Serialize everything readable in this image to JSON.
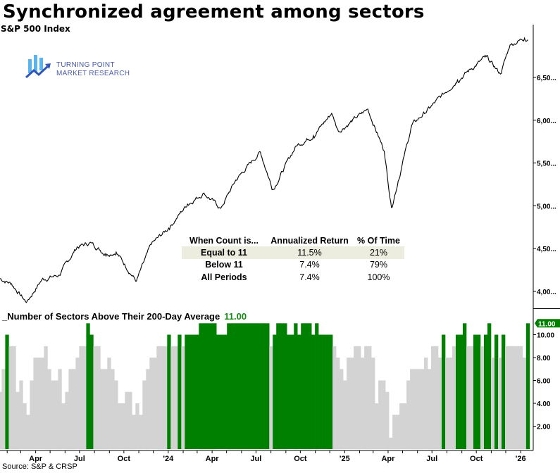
{
  "title": "Synchronized agreement among sectors",
  "logo": {
    "line1": "TURNING POINT",
    "line2": "MARKET RESEARCH"
  },
  "source": "Source: S&P & CRSP",
  "colors": {
    "price_line": "#000000",
    "count_at_or_above_10": "#008000",
    "count_below_10": "#d3d3d3",
    "logo_blue": "#2f7fe0",
    "logo_text": "#4a5aa8",
    "table_highlight": "#ecedde"
  },
  "stats_table": {
    "headers": [
      "When Count is...",
      "Annualized Return",
      "% Of Time"
    ],
    "rows": [
      {
        "label": "Equal to 11",
        "annualized_return": "11.5%",
        "pct_time": "21%"
      },
      {
        "label": "Below 11",
        "annualized_return": "7.4%",
        "pct_time": "79%"
      },
      {
        "label": "All Periods",
        "annualized_return": "7.4%",
        "pct_time": "100%"
      }
    ]
  },
  "chart_data": [
    {
      "type": "line",
      "title": "S&P 500 Index",
      "ylim": [
        3800,
        7050
      ],
      "y_ticks": [
        "4,00...",
        "4,50...",
        "5,00...",
        "5,50...",
        "6,00...",
        "6,50..."
      ],
      "y_tick_values": [
        4000,
        4500,
        5000,
        5500,
        6000,
        6500
      ],
      "grid": false,
      "points": [
        [
          "2023-01-17",
          4150
        ],
        [
          "2023-02-10",
          4090
        ],
        [
          "2023-03-13",
          3870
        ],
        [
          "2023-04-14",
          4140
        ],
        [
          "2023-05-20",
          4190
        ],
        [
          "2023-06-26",
          4520
        ],
        [
          "2023-07-25",
          4570
        ],
        [
          "2023-08-23",
          4440
        ],
        [
          "2023-09-15",
          4460
        ],
        [
          "2023-10-27",
          4120
        ],
        [
          "2023-11-27",
          4550
        ],
        [
          "2024-01-02",
          4740
        ],
        [
          "2024-02-10",
          5020
        ],
        [
          "2024-03-15",
          5150
        ],
        [
          "2024-04-19",
          4970
        ],
        [
          "2024-05-20",
          5300
        ],
        [
          "2024-07-10",
          5630
        ],
        [
          "2024-08-05",
          5190
        ],
        [
          "2024-09-22",
          5700
        ],
        [
          "2024-10-28",
          5820
        ],
        [
          "2024-12-05",
          6080
        ],
        [
          "2024-12-19",
          5870
        ],
        [
          "2025-02-18",
          6130
        ],
        [
          "2025-03-24",
          5640
        ],
        [
          "2025-04-08",
          4980
        ],
        [
          "2025-04-22",
          5290
        ],
        [
          "2025-05-20",
          5940
        ],
        [
          "2025-06-26",
          6140
        ],
        [
          "2025-08-23",
          6470
        ],
        [
          "2025-10-21",
          6740
        ],
        [
          "2025-11-20",
          6540
        ],
        [
          "2025-12-10",
          6880
        ],
        [
          "2026-01-09",
          6960
        ],
        [
          "2026-01-16",
          6940
        ]
      ]
    },
    {
      "type": "bar",
      "title": "Number of Sectors Above Their 200-Day Average",
      "last_value": "11.00",
      "ylim": [
        0,
        11.5
      ],
      "y_ticks": [
        "2.00",
        "4.00",
        "6.00",
        "8.00",
        "10.00"
      ],
      "y_tick_values": [
        2,
        4,
        6,
        8,
        10
      ],
      "x_range": [
        "2023-01-17",
        "2026-01-16"
      ],
      "green_when_at_least": 10,
      "values": [
        5,
        7,
        10,
        9,
        9,
        5,
        6,
        4,
        3,
        6,
        8,
        8,
        8,
        9,
        7,
        6,
        6,
        7,
        4,
        5,
        7,
        7,
        8,
        9,
        9,
        11,
        10,
        9,
        9,
        7,
        7,
        8,
        7,
        6,
        4,
        4,
        5,
        5,
        3,
        4,
        3,
        6,
        7,
        8,
        8,
        9,
        9,
        9,
        10,
        9,
        9,
        10,
        9,
        10,
        10,
        10,
        10,
        11,
        11,
        11,
        11,
        11,
        10,
        10,
        10,
        11,
        11,
        11,
        11,
        11,
        11,
        11,
        11,
        11,
        11,
        11,
        11,
        9,
        10,
        11,
        11,
        11,
        10,
        10,
        11,
        10,
        11,
        11,
        11,
        10,
        11,
        10,
        10,
        10,
        10,
        9,
        8,
        7,
        6,
        8,
        8,
        9,
        9,
        8,
        9,
        9,
        8,
        4,
        6,
        6,
        5,
        1,
        3,
        3,
        4,
        4,
        6,
        7,
        7,
        7,
        7,
        8,
        7,
        9,
        9,
        8,
        10,
        8,
        8,
        9,
        10,
        10,
        11,
        9,
        9,
        10,
        10,
        9,
        10,
        11,
        8,
        10,
        8,
        10,
        9,
        9,
        9,
        9,
        9,
        8,
        11
      ]
    }
  ],
  "x_axis": {
    "ticks": [
      "Apr",
      "Jul",
      "Oct",
      "'24",
      "Apr",
      "Jul",
      "Oct",
      "'25",
      "Apr",
      "Jul",
      "Oct",
      "'26"
    ],
    "tick_dates": [
      "2023-04-01",
      "2023-07-01",
      "2023-10-01",
      "2024-01-01",
      "2024-04-01",
      "2024-07-01",
      "2024-10-01",
      "2025-01-01",
      "2025-04-01",
      "2025-07-01",
      "2025-10-01",
      "2026-01-01"
    ]
  }
}
